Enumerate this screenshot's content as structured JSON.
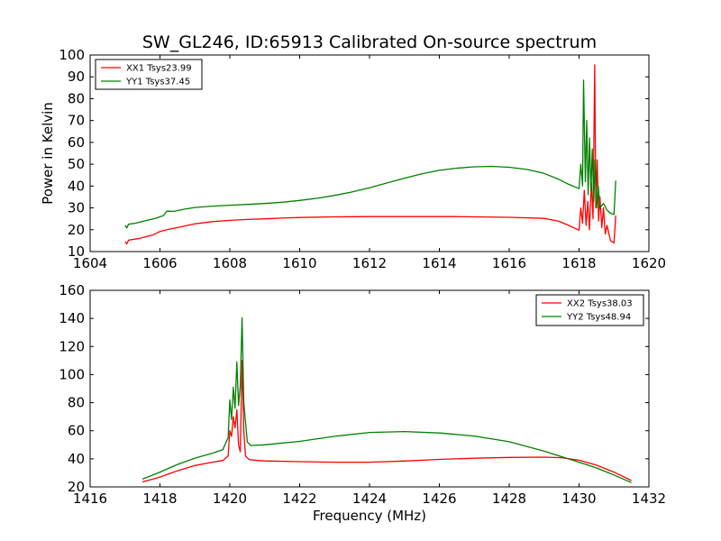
{
  "figure": {
    "title": "SW_GL246, ID:65913 Calibrated On-source spectrum"
  },
  "chart_data": [
    {
      "type": "line",
      "title": "SW_GL246, ID:65913 Calibrated On-source spectrum",
      "xlabel": "",
      "ylabel": "Power in Kelvin",
      "xlim": [
        1604,
        1620
      ],
      "ylim": [
        10,
        100
      ],
      "xticks": [
        1604,
        1606,
        1608,
        1610,
        1612,
        1614,
        1616,
        1618,
        1620
      ],
      "yticks": [
        10,
        20,
        30,
        40,
        50,
        60,
        70,
        80,
        90,
        100
      ],
      "grid": false,
      "legend_position": "top-left",
      "series": [
        {
          "name": "XX1 Tsys23.99",
          "color": "#ff0000",
          "points": [
            [
              1605.0,
              14.5
            ],
            [
              1605.05,
              13.6
            ],
            [
              1605.1,
              15.2
            ],
            [
              1605.2,
              15.5
            ],
            [
              1605.4,
              16.0
            ],
            [
              1605.6,
              16.8
            ],
            [
              1605.8,
              17.6
            ],
            [
              1606.0,
              19.2
            ],
            [
              1606.2,
              20.0
            ],
            [
              1606.5,
              21.0
            ],
            [
              1607.0,
              22.7
            ],
            [
              1607.5,
              23.7
            ],
            [
              1608.0,
              24.3
            ],
            [
              1608.5,
              24.7
            ],
            [
              1609.0,
              25.0
            ],
            [
              1609.5,
              25.3
            ],
            [
              1610.0,
              25.6
            ],
            [
              1611.0,
              25.9
            ],
            [
              1612.0,
              26.0
            ],
            [
              1613.0,
              26.0
            ],
            [
              1614.0,
              26.0
            ],
            [
              1614.5,
              26.0
            ],
            [
              1615.0,
              25.9
            ],
            [
              1616.0,
              25.7
            ],
            [
              1617.0,
              25.2
            ],
            [
              1617.4,
              24.0
            ],
            [
              1617.7,
              22.0
            ],
            [
              1618.0,
              19.8
            ],
            [
              1618.05,
              30.0
            ],
            [
              1618.1,
              23.0
            ],
            [
              1618.15,
              38.0
            ],
            [
              1618.2,
              22.0
            ],
            [
              1618.25,
              33.0
            ],
            [
              1618.3,
              20.0
            ],
            [
              1618.35,
              42.0
            ],
            [
              1618.4,
              25.0
            ],
            [
              1618.45,
              95.5
            ],
            [
              1618.48,
              30.0
            ],
            [
              1618.52,
              52.0
            ],
            [
              1618.56,
              24.0
            ],
            [
              1618.6,
              35.0
            ],
            [
              1618.65,
              21.0
            ],
            [
              1618.7,
              30.0
            ],
            [
              1618.75,
              18.0
            ],
            [
              1618.8,
              22.0
            ],
            [
              1618.9,
              15.0
            ],
            [
              1619.0,
              14.0
            ],
            [
              1619.05,
              26.5
            ]
          ]
        },
        {
          "name": "YY1 Tsys37.45",
          "color": "#008000",
          "points": [
            [
              1605.0,
              22.0
            ],
            [
              1605.05,
              20.8
            ],
            [
              1605.1,
              22.5
            ],
            [
              1605.3,
              23.0
            ],
            [
              1605.6,
              24.2
            ],
            [
              1605.9,
              25.3
            ],
            [
              1606.1,
              26.5
            ],
            [
              1606.2,
              28.5
            ],
            [
              1606.4,
              28.4
            ],
            [
              1606.7,
              29.4
            ],
            [
              1607.0,
              30.2
            ],
            [
              1607.5,
              30.8
            ],
            [
              1608.0,
              31.2
            ],
            [
              1608.5,
              31.6
            ],
            [
              1609.0,
              32.0
            ],
            [
              1609.5,
              32.6
            ],
            [
              1610.0,
              33.4
            ],
            [
              1610.5,
              34.4
            ],
            [
              1611.0,
              35.7
            ],
            [
              1611.5,
              37.3
            ],
            [
              1612.0,
              39.2
            ],
            [
              1612.5,
              41.4
            ],
            [
              1613.0,
              43.6
            ],
            [
              1613.5,
              45.6
            ],
            [
              1614.0,
              47.2
            ],
            [
              1614.5,
              48.2
            ],
            [
              1615.0,
              48.8
            ],
            [
              1615.5,
              49.0
            ],
            [
              1616.0,
              48.6
            ],
            [
              1616.5,
              47.6
            ],
            [
              1617.0,
              45.8
            ],
            [
              1617.4,
              43.2
            ],
            [
              1617.7,
              40.8
            ],
            [
              1618.0,
              38.8
            ],
            [
              1618.05,
              50.0
            ],
            [
              1618.1,
              40.0
            ],
            [
              1618.13,
              88.5
            ],
            [
              1618.18,
              42.0
            ],
            [
              1618.22,
              70.0
            ],
            [
              1618.26,
              36.0
            ],
            [
              1618.3,
              62.0
            ],
            [
              1618.34,
              38.0
            ],
            [
              1618.38,
              57.0
            ],
            [
              1618.42,
              33.0
            ],
            [
              1618.46,
              52.0
            ],
            [
              1618.5,
              30.0
            ],
            [
              1618.55,
              40.0
            ],
            [
              1618.6,
              30.0
            ],
            [
              1618.7,
              32.0
            ],
            [
              1618.8,
              29.0
            ],
            [
              1618.9,
              27.5
            ],
            [
              1619.0,
              27.0
            ],
            [
              1619.05,
              42.5
            ]
          ]
        }
      ]
    },
    {
      "type": "line",
      "title": "",
      "xlabel": "Frequency (MHz)",
      "ylabel": "",
      "xlim": [
        1416,
        1432
      ],
      "ylim": [
        20,
        160
      ],
      "xticks": [
        1416,
        1418,
        1420,
        1422,
        1424,
        1426,
        1428,
        1430,
        1432
      ],
      "yticks": [
        20,
        40,
        60,
        80,
        100,
        120,
        140,
        160
      ],
      "grid": false,
      "legend_position": "top-right",
      "series": [
        {
          "name": "XX2 Tsys38.03",
          "color": "#ff0000",
          "points": [
            [
              1417.5,
              23.5
            ],
            [
              1418.0,
              27.0
            ],
            [
              1418.5,
              31.5
            ],
            [
              1419.0,
              35.2
            ],
            [
              1419.5,
              37.6
            ],
            [
              1419.8,
              38.8
            ],
            [
              1419.95,
              42.0
            ],
            [
              1420.0,
              60.0
            ],
            [
              1420.05,
              56.0
            ],
            [
              1420.1,
              70.0
            ],
            [
              1420.15,
              62.0
            ],
            [
              1420.2,
              75.0
            ],
            [
              1420.25,
              50.0
            ],
            [
              1420.3,
              45.0
            ],
            [
              1420.35,
              110.0
            ],
            [
              1420.4,
              60.0
            ],
            [
              1420.45,
              42.0
            ],
            [
              1420.55,
              39.5
            ],
            [
              1420.8,
              38.8
            ],
            [
              1421.0,
              38.5
            ],
            [
              1422.0,
              38.0
            ],
            [
              1423.0,
              37.6
            ],
            [
              1424.0,
              37.6
            ],
            [
              1425.0,
              38.4
            ],
            [
              1426.0,
              39.6
            ],
            [
              1427.0,
              40.4
            ],
            [
              1428.0,
              41.0
            ],
            [
              1429.0,
              41.2
            ],
            [
              1429.5,
              40.8
            ],
            [
              1430.0,
              39.0
            ],
            [
              1430.5,
              35.5
            ],
            [
              1431.0,
              30.5
            ],
            [
              1431.5,
              24.5
            ]
          ]
        },
        {
          "name": "YY2 Tsys48.94",
          "color": "#008000",
          "points": [
            [
              1417.5,
              25.5
            ],
            [
              1418.0,
              30.5
            ],
            [
              1418.5,
              36.0
            ],
            [
              1419.0,
              40.5
            ],
            [
              1419.5,
              44.0
            ],
            [
              1419.8,
              46.5
            ],
            [
              1419.95,
              55.0
            ],
            [
              1420.0,
              82.0
            ],
            [
              1420.05,
              68.0
            ],
            [
              1420.1,
              91.0
            ],
            [
              1420.15,
              76.0
            ],
            [
              1420.2,
              109.0
            ],
            [
              1420.25,
              78.0
            ],
            [
              1420.3,
              92.0
            ],
            [
              1420.35,
              140.5
            ],
            [
              1420.4,
              80.0
            ],
            [
              1420.5,
              52.0
            ],
            [
              1420.6,
              49.5
            ],
            [
              1421.0,
              50.0
            ],
            [
              1422.0,
              52.4
            ],
            [
              1423.0,
              56.0
            ],
            [
              1424.0,
              58.8
            ],
            [
              1425.0,
              59.4
            ],
            [
              1426.0,
              58.4
            ],
            [
              1427.0,
              56.2
            ],
            [
              1428.0,
              52.2
            ],
            [
              1429.0,
              45.4
            ],
            [
              1430.0,
              37.6
            ],
            [
              1430.5,
              33.5
            ],
            [
              1431.0,
              28.5
            ],
            [
              1431.5,
              23.0
            ]
          ]
        }
      ]
    }
  ]
}
